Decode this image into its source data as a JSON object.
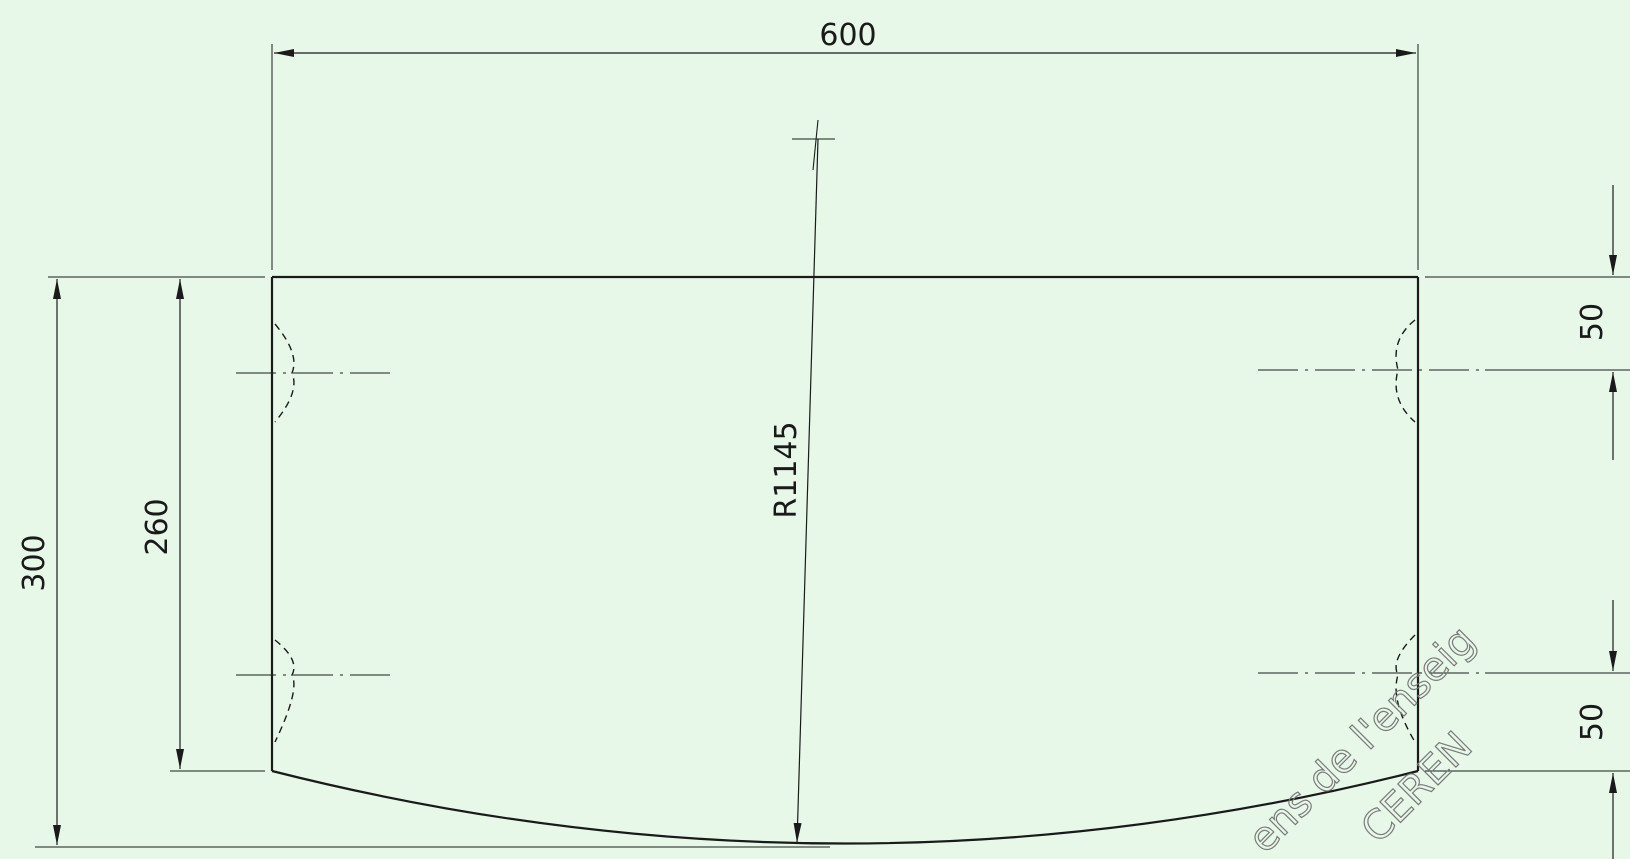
{
  "dimensions": {
    "width": "600",
    "height_total": "300",
    "height_side": "260",
    "radius": "R1145",
    "offset_top": "50",
    "offset_bottom": "50"
  },
  "watermark": {
    "line1": "ens de l'enseig",
    "line2": "CEREN"
  },
  "colors": {
    "background": "#e7f8e9",
    "line": "#1a1a1a",
    "watermark": "#7a7a7a"
  }
}
